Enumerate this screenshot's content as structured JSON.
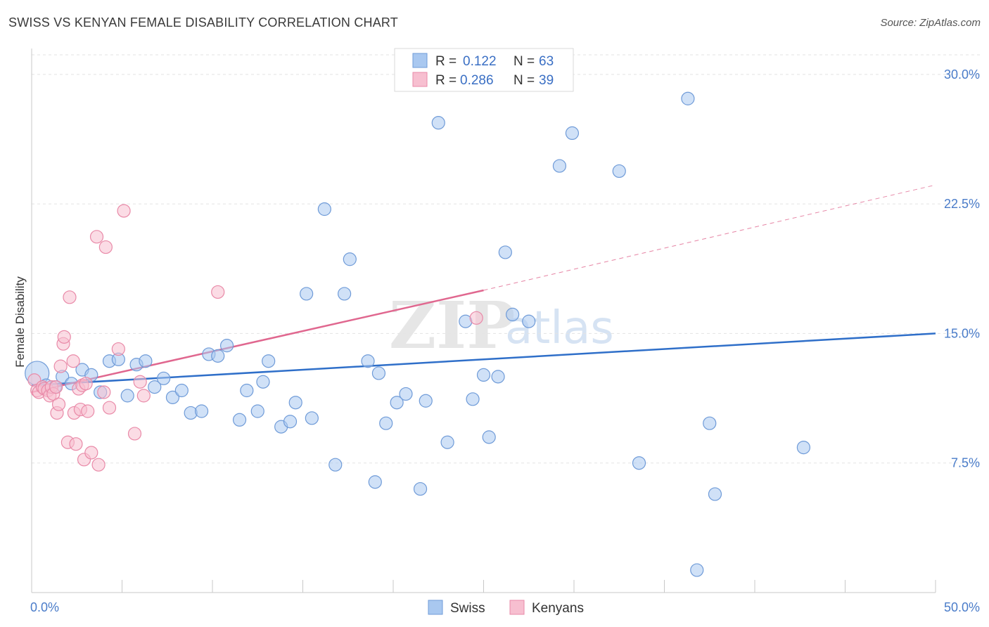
{
  "title": "SWISS VS KENYAN FEMALE DISABILITY CORRELATION CHART",
  "source": "Source: ZipAtlas.com",
  "watermark": {
    "zip": "ZIP",
    "atlas": "atlas"
  },
  "colors": {
    "swiss_fill": "#a9c8f0",
    "swiss_stroke": "#6f9bd8",
    "swiss_line": "#2f6fc9",
    "kenyan_fill": "#f7bfd0",
    "kenyan_stroke": "#e98aa8",
    "kenyan_line": "#e0678f",
    "grid": "#e3e3e3",
    "axis_text": "#4a7cc9"
  },
  "legend": {
    "swiss": {
      "r_label": "R =",
      "r_value": "0.122",
      "n_label": "N =",
      "n_value": "63"
    },
    "kenyan": {
      "r_label": "R =",
      "r_value": "0.286",
      "n_label": "N =",
      "n_value": "39"
    }
  },
  "chart_data": {
    "type": "scatter",
    "title": "SWISS VS KENYAN FEMALE DISABILITY CORRELATION CHART",
    "xlabel": "",
    "ylabel": "Female Disability",
    "xlim": [
      0,
      50
    ],
    "ylim": [
      0,
      31.5
    ],
    "x_tick_labels": [
      "0.0%",
      "50.0%"
    ],
    "y_ticks": [
      7.5,
      15.0,
      22.5,
      30.0
    ],
    "y_tick_labels": [
      "7.5%",
      "15.0%",
      "22.5%",
      "30.0%"
    ],
    "legend_position": "bottom-center",
    "series": [
      {
        "name": "Swiss",
        "r": 0.122,
        "n": 63,
        "trend": {
          "x0": 0,
          "y0": 12.0,
          "x1": 50,
          "y1": 15.0
        },
        "points": [
          {
            "x": 0.3,
            "y": 12.7,
            "big": true
          },
          {
            "x": 0.8,
            "y": 12.0
          },
          {
            "x": 1.3,
            "y": 11.9
          },
          {
            "x": 1.7,
            "y": 12.5
          },
          {
            "x": 2.2,
            "y": 12.1
          },
          {
            "x": 2.8,
            "y": 12.9
          },
          {
            "x": 3.3,
            "y": 12.6
          },
          {
            "x": 3.8,
            "y": 11.6
          },
          {
            "x": 4.3,
            "y": 13.4
          },
          {
            "x": 4.8,
            "y": 13.5
          },
          {
            "x": 5.3,
            "y": 11.4
          },
          {
            "x": 5.8,
            "y": 13.2
          },
          {
            "x": 6.3,
            "y": 13.4
          },
          {
            "x": 6.8,
            "y": 11.9
          },
          {
            "x": 7.3,
            "y": 12.4
          },
          {
            "x": 7.8,
            "y": 11.3
          },
          {
            "x": 8.3,
            "y": 11.7
          },
          {
            "x": 8.8,
            "y": 10.4
          },
          {
            "x": 9.4,
            "y": 10.5
          },
          {
            "x": 9.8,
            "y": 13.8
          },
          {
            "x": 10.3,
            "y": 13.7
          },
          {
            "x": 10.8,
            "y": 14.3
          },
          {
            "x": 11.5,
            "y": 10.0
          },
          {
            "x": 11.9,
            "y": 11.7
          },
          {
            "x": 12.5,
            "y": 10.5
          },
          {
            "x": 12.8,
            "y": 12.2
          },
          {
            "x": 13.1,
            "y": 13.4
          },
          {
            "x": 13.8,
            "y": 9.6
          },
          {
            "x": 14.3,
            "y": 9.9
          },
          {
            "x": 14.6,
            "y": 11.0
          },
          {
            "x": 15.5,
            "y": 10.1
          },
          {
            "x": 15.2,
            "y": 17.3
          },
          {
            "x": 16.2,
            "y": 22.2
          },
          {
            "x": 16.8,
            "y": 7.4
          },
          {
            "x": 17.3,
            "y": 17.3
          },
          {
            "x": 17.6,
            "y": 19.3
          },
          {
            "x": 18.6,
            "y": 13.4
          },
          {
            "x": 19.2,
            "y": 12.7
          },
          {
            "x": 19.0,
            "y": 6.4
          },
          {
            "x": 19.6,
            "y": 9.8
          },
          {
            "x": 20.2,
            "y": 11.0
          },
          {
            "x": 20.7,
            "y": 11.5
          },
          {
            "x": 21.5,
            "y": 6.0
          },
          {
            "x": 21.8,
            "y": 11.1
          },
          {
            "x": 22.5,
            "y": 27.2
          },
          {
            "x": 23.0,
            "y": 8.7
          },
          {
            "x": 24.0,
            "y": 15.7
          },
          {
            "x": 24.4,
            "y": 11.2
          },
          {
            "x": 25.0,
            "y": 12.6
          },
          {
            "x": 25.3,
            "y": 9.0
          },
          {
            "x": 25.8,
            "y": 12.5
          },
          {
            "x": 26.2,
            "y": 19.7
          },
          {
            "x": 26.6,
            "y": 16.1
          },
          {
            "x": 27.5,
            "y": 15.7
          },
          {
            "x": 29.2,
            "y": 24.7
          },
          {
            "x": 29.9,
            "y": 26.6
          },
          {
            "x": 32.5,
            "y": 24.4
          },
          {
            "x": 33.6,
            "y": 7.5
          },
          {
            "x": 36.3,
            "y": 28.6
          },
          {
            "x": 36.8,
            "y": 1.3
          },
          {
            "x": 37.5,
            "y": 9.8
          },
          {
            "x": 37.8,
            "y": 5.7
          },
          {
            "x": 42.7,
            "y": 8.4
          }
        ]
      },
      {
        "name": "Kenyans",
        "r": 0.286,
        "n": 39,
        "trend": {
          "x0": 0,
          "y0": 11.6,
          "x1": 25,
          "y1": 17.5
        },
        "trend_dashed": {
          "x0": 25,
          "y0": 17.5,
          "x1": 50,
          "y1": 23.6
        },
        "points": [
          {
            "x": 0.15,
            "y": 12.3
          },
          {
            "x": 0.3,
            "y": 11.7
          },
          {
            "x": 0.4,
            "y": 11.6
          },
          {
            "x": 0.6,
            "y": 11.9
          },
          {
            "x": 0.7,
            "y": 11.8
          },
          {
            "x": 0.9,
            "y": 11.7
          },
          {
            "x": 1.0,
            "y": 11.4
          },
          {
            "x": 1.1,
            "y": 11.9
          },
          {
            "x": 1.2,
            "y": 11.5
          },
          {
            "x": 1.35,
            "y": 11.9
          },
          {
            "x": 1.4,
            "y": 10.4
          },
          {
            "x": 1.5,
            "y": 10.9
          },
          {
            "x": 1.6,
            "y": 13.1
          },
          {
            "x": 1.75,
            "y": 14.4
          },
          {
            "x": 1.8,
            "y": 14.8
          },
          {
            "x": 2.0,
            "y": 8.7
          },
          {
            "x": 2.1,
            "y": 17.1
          },
          {
            "x": 2.3,
            "y": 13.4
          },
          {
            "x": 2.35,
            "y": 10.4
          },
          {
            "x": 2.45,
            "y": 8.6
          },
          {
            "x": 2.6,
            "y": 11.8
          },
          {
            "x": 2.7,
            "y": 10.6
          },
          {
            "x": 2.8,
            "y": 12.0
          },
          {
            "x": 2.9,
            "y": 7.7
          },
          {
            "x": 3.0,
            "y": 12.1
          },
          {
            "x": 3.1,
            "y": 10.5
          },
          {
            "x": 3.3,
            "y": 8.1
          },
          {
            "x": 3.6,
            "y": 20.6
          },
          {
            "x": 3.7,
            "y": 7.4
          },
          {
            "x": 4.0,
            "y": 11.6
          },
          {
            "x": 4.1,
            "y": 20.0
          },
          {
            "x": 4.3,
            "y": 10.7
          },
          {
            "x": 4.8,
            "y": 14.1
          },
          {
            "x": 5.1,
            "y": 22.1
          },
          {
            "x": 5.7,
            "y": 9.2
          },
          {
            "x": 6.0,
            "y": 12.2
          },
          {
            "x": 6.2,
            "y": 11.4
          },
          {
            "x": 10.3,
            "y": 17.4
          },
          {
            "x": 24.6,
            "y": 15.9
          }
        ]
      }
    ]
  },
  "bottom_legend": {
    "swiss": "Swiss",
    "kenyan": "Kenyans"
  }
}
